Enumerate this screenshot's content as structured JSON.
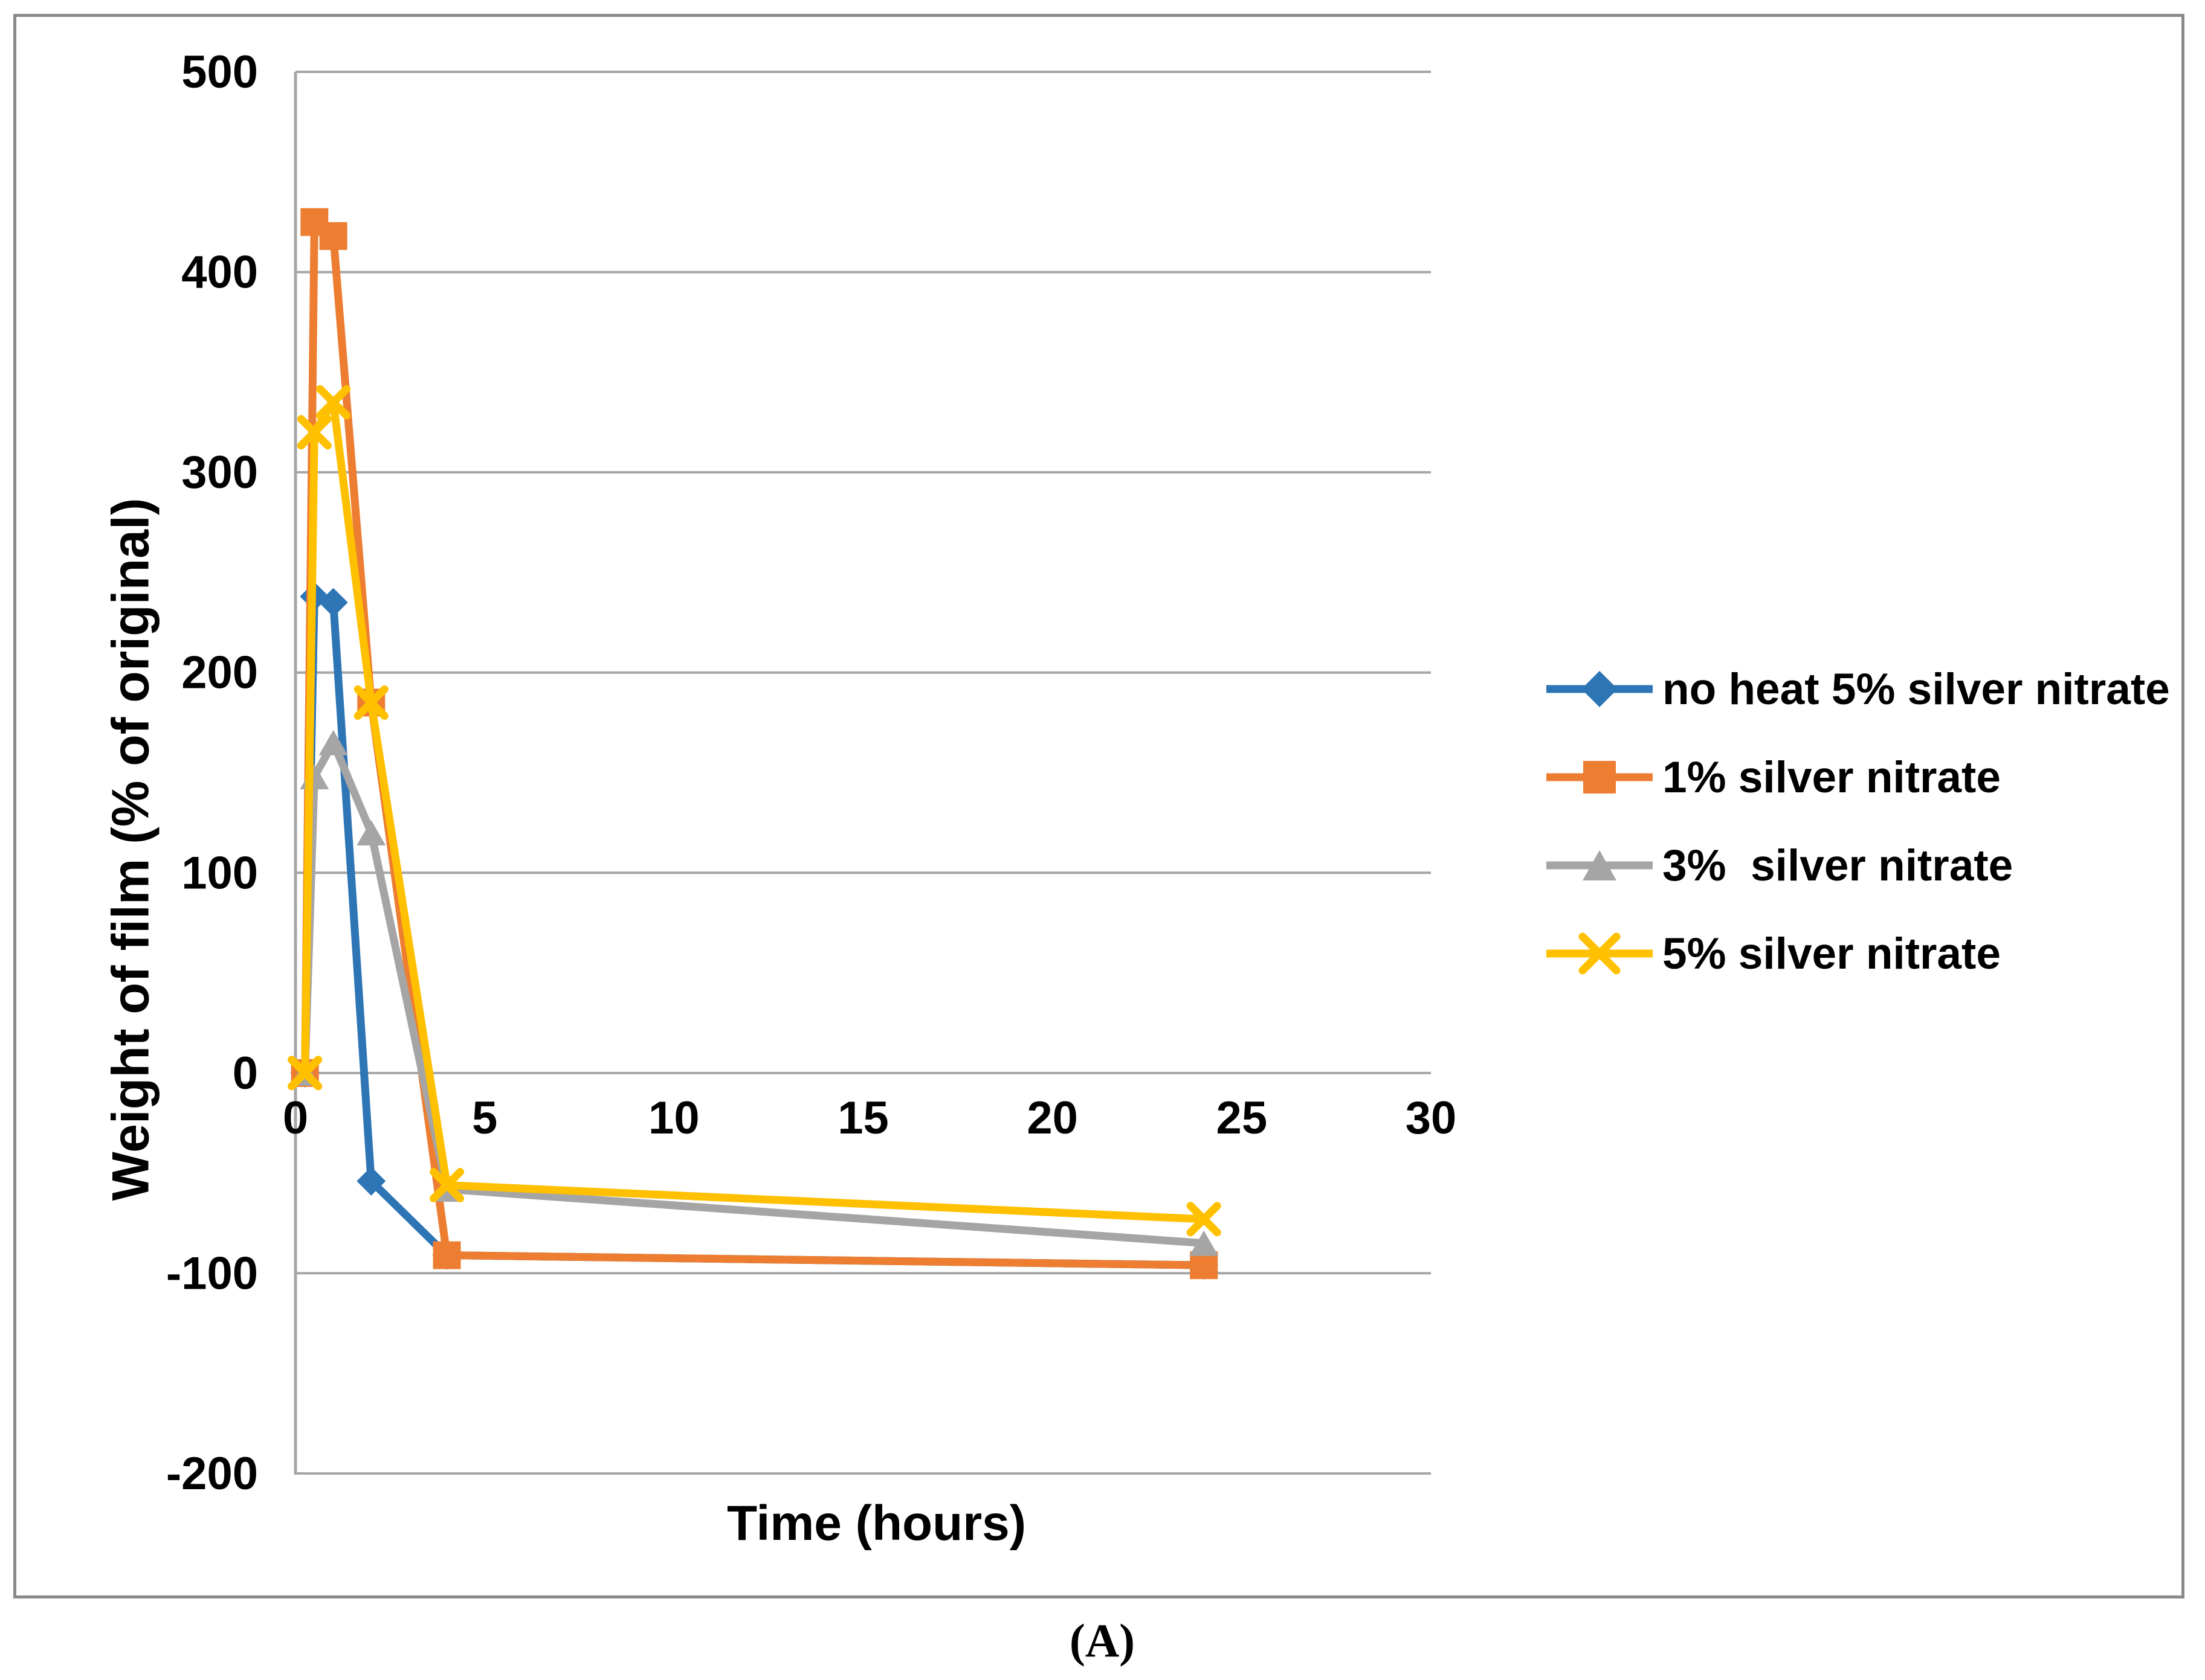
{
  "figure": {
    "caption": "(A)"
  },
  "chart_data": {
    "type": "line",
    "title": "",
    "xlabel": "Time (hours)",
    "ylabel": "Weight of film (% of original)",
    "x": [
      0.25,
      0.5,
      1,
      2,
      4,
      24
    ],
    "series": [
      {
        "name": "no heat 5% silver nitrate",
        "color": "#2E75B6",
        "marker": "diamond",
        "values": [
          0,
          238,
          235,
          -54,
          -91,
          -96
        ]
      },
      {
        "name": "1% silver nitrate",
        "color": "#ED7D31",
        "marker": "square",
        "values": [
          0,
          425,
          418,
          185,
          -91,
          -96
        ]
      },
      {
        "name": "3%  silver nitrate",
        "color": "#A5A5A5",
        "marker": "triangle",
        "values": [
          0,
          148,
          165,
          120,
          -58,
          -85
        ]
      },
      {
        "name": "5% silver nitrate",
        "color": "#FFC000",
        "marker": "x",
        "values": [
          0,
          320,
          335,
          185,
          -56,
          -73
        ]
      }
    ],
    "xlim": [
      0,
      30
    ],
    "ylim": [
      -200,
      500
    ],
    "xticks": [
      0,
      5,
      10,
      15,
      20,
      25,
      30
    ],
    "yticks": [
      -200,
      -100,
      0,
      100,
      200,
      300,
      400,
      500
    ],
    "grid": "horizontal",
    "legend_position": "right",
    "colors": {
      "gridline": "#A6A6A6",
      "axis_line": "#A6A6A6",
      "figure_border": "#8A8A8A",
      "text": "#000000",
      "background": "#FFFFFF"
    }
  }
}
